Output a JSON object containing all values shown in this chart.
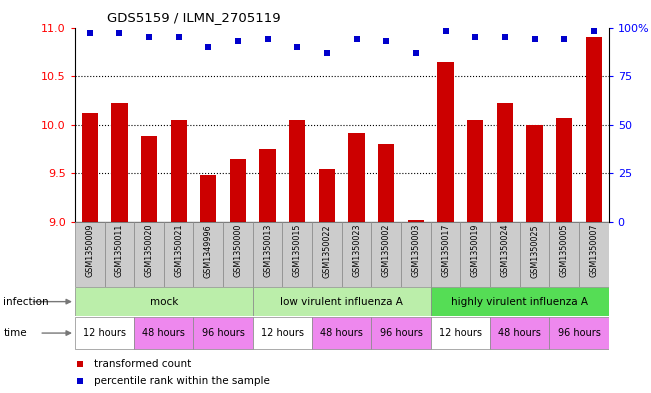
{
  "title": "GDS5159 / ILMN_2705119",
  "samples": [
    "GSM1350009",
    "GSM1350011",
    "GSM1350020",
    "GSM1350021",
    "GSM1349996",
    "GSM1350000",
    "GSM1350013",
    "GSM1350015",
    "GSM1350022",
    "GSM1350023",
    "GSM1350002",
    "GSM1350003",
    "GSM1350017",
    "GSM1350019",
    "GSM1350024",
    "GSM1350025",
    "GSM1350005",
    "GSM1350007"
  ],
  "bar_values": [
    10.12,
    10.22,
    9.88,
    10.05,
    9.48,
    9.65,
    9.75,
    10.05,
    9.55,
    9.92,
    9.8,
    9.02,
    10.65,
    10.05,
    10.22,
    10.0,
    10.07,
    10.9
  ],
  "percentile_values": [
    97,
    97,
    95,
    95,
    90,
    93,
    94,
    90,
    87,
    94,
    93,
    87,
    98,
    95,
    95,
    94,
    94,
    98
  ],
  "ylim_left": [
    9,
    11
  ],
  "ylim_right": [
    0,
    100
  ],
  "yticks_left": [
    9,
    9.5,
    10,
    10.5,
    11
  ],
  "yticks_right": [
    0,
    25,
    50,
    75,
    100
  ],
  "bar_color": "#cc0000",
  "dot_color": "#0000cc",
  "bar_bottom": 9,
  "infection_groups": [
    {
      "label": "mock",
      "start": 0,
      "end": 6,
      "color": "#bbeeaa"
    },
    {
      "label": "low virulent influenza A",
      "start": 6,
      "end": 12,
      "color": "#bbeeaa"
    },
    {
      "label": "highly virulent influenza A",
      "start": 12,
      "end": 18,
      "color": "#55dd55"
    }
  ],
  "time_groups": [
    {
      "label": "12 hours",
      "color": "#ffffff",
      "start": 0,
      "end": 2
    },
    {
      "label": "48 hours",
      "color": "#ee88ee",
      "start": 2,
      "end": 4
    },
    {
      "label": "96 hours",
      "color": "#ee88ee",
      "start": 4,
      "end": 6
    },
    {
      "label": "12 hours",
      "color": "#ffffff",
      "start": 6,
      "end": 8
    },
    {
      "label": "48 hours",
      "color": "#ee88ee",
      "start": 8,
      "end": 10
    },
    {
      "label": "96 hours",
      "color": "#ee88ee",
      "start": 10,
      "end": 12
    },
    {
      "label": "12 hours",
      "color": "#ffffff",
      "start": 12,
      "end": 14
    },
    {
      "label": "48 hours",
      "color": "#ee88ee",
      "start": 14,
      "end": 16
    },
    {
      "label": "96 hours",
      "color": "#ee88ee",
      "start": 16,
      "end": 18
    }
  ],
  "sample_label_bg": "#cccccc",
  "background_color": "#ffffff"
}
